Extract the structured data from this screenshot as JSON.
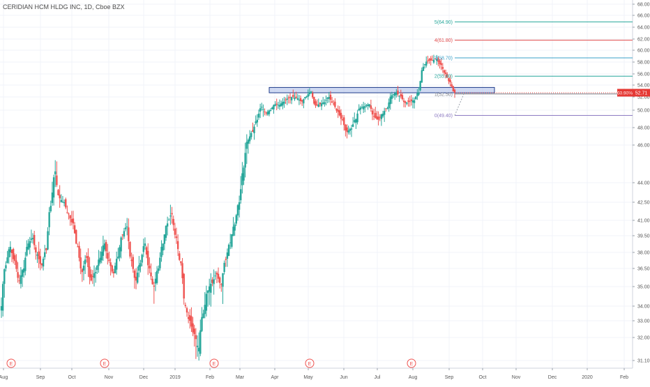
{
  "header": {
    "title": "CERIDIAN HCM HLDG INC, 1D, Cboe BZX"
  },
  "colors": {
    "up": "#26a69a",
    "down": "#ef5350",
    "grid": "#f0f3fa",
    "axis_text": "#555555",
    "zone_fill": "#a7b9e8",
    "zone_stroke": "#1d3a8a",
    "earnings": "#ef5350",
    "fib_5": "#26a69a",
    "fib_4": "#e04a4a",
    "fib_3": "#3aa0c9",
    "fib_2": "#26a69a",
    "fib_1": "#787b86",
    "fib_0": "#8e7cc3",
    "price_badge": "#e53935"
  },
  "chart_data": {
    "type": "candlestick",
    "title": "CERIDIAN HCM HLDG INC, 1D, Cboe BZX",
    "ylim": [
      31.1,
      68.0
    ],
    "y_ticks": [
      "68.00",
      "66.00",
      "64.00",
      "62.00",
      "60.00",
      "58.00",
      "56.00",
      "54.00",
      "52.00",
      "50.00",
      "48.00",
      "46.00",
      "44.00",
      "42.50",
      "41.00",
      "39.50",
      "38.00",
      "36.50",
      "35.00",
      "34.00",
      "33.00",
      "32.00",
      "31.10"
    ],
    "x_ticks": [
      "Aug",
      "Sep",
      "Oct",
      "Nov",
      "Dec",
      "2019",
      "Feb",
      "Mar",
      "Apr",
      "May",
      "Jun",
      "Jul",
      "Aug",
      "Sep",
      "Oct",
      "Nov",
      "Dec",
      "2020",
      "Feb"
    ],
    "grid": true,
    "earnings_markers": {
      "label": "E",
      "months": [
        "Aug",
        "Nov",
        "Feb",
        "May",
        "Aug"
      ]
    },
    "resistance_zone": {
      "y_low": 52.7,
      "y_high": 53.6
    },
    "fib_levels": [
      {
        "label": "5(64.90)",
        "value": 64.9
      },
      {
        "label": "4(61.80)",
        "value": 61.8
      },
      {
        "label": "3(58.70)",
        "value": 58.7
      },
      {
        "label": "2(55.60)",
        "value": 55.6
      },
      {
        "label": "1(52.50)",
        "value": 52.5
      },
      {
        "label": "0(49.40)",
        "value": 49.4
      }
    ],
    "last_price": {
      "percent": "60.90%",
      "price": "52.71"
    },
    "series": [
      {
        "name": "",
        "kind": "ohlc",
        "close_path": [
          34,
          36.8,
          38.5,
          37.2,
          35.5,
          36.5,
          38.8,
          39.3,
          37.8,
          36.8,
          38.2,
          42.2,
          44.6,
          42.8,
          42.5,
          41.5,
          40.7,
          38.5,
          36.2,
          37.5,
          35.5,
          36.2,
          37.5,
          38.8,
          37.2,
          36.1,
          37.6,
          39.6,
          40.4,
          37.2,
          35.5,
          37.0,
          38.8,
          36.5,
          35.0,
          36.5,
          38.8,
          40.7,
          41.5,
          39.3,
          37.0,
          34.0,
          33.0,
          32.2,
          31.6,
          33.5,
          34.8,
          35.3,
          36.0,
          35.2,
          37.3,
          38.9,
          40.6,
          42.5,
          44.8,
          46.6,
          47.5,
          48.9,
          50.5,
          49.7,
          50.0,
          50.9,
          50.8,
          51.3,
          51.8,
          52.0,
          51.8,
          51.3,
          52.1,
          52.9,
          50.7,
          50.9,
          51.2,
          52.0,
          51.0,
          49.8,
          48.9,
          47.5,
          47.9,
          49.0,
          50.4,
          50.6,
          50.9,
          49.3,
          48.9,
          49.6,
          50.3,
          52.3,
          52.7,
          52.1,
          51.1,
          51.3,
          51.5,
          52.8,
          57.2,
          58.2,
          58.3,
          58.5,
          57.5,
          56.0,
          54.5,
          52.71
        ],
        "close_values": [
          34,
          38.5,
          36.5,
          36.8,
          42.8,
          44.6,
          39.3,
          36.8,
          38.5,
          35.5,
          37.2,
          39.6,
          37.0,
          38.8,
          41.5,
          35.5,
          31.6,
          33.5,
          36.0,
          40.6,
          44.8,
          48.9,
          50.5,
          51.3,
          52.9,
          50.6,
          52.0,
          47.5,
          49.0,
          50.9,
          48.9,
          52.3,
          51.3,
          51.5,
          52.8,
          58.3,
          58.5,
          56.0,
          52.71
        ]
      }
    ]
  }
}
